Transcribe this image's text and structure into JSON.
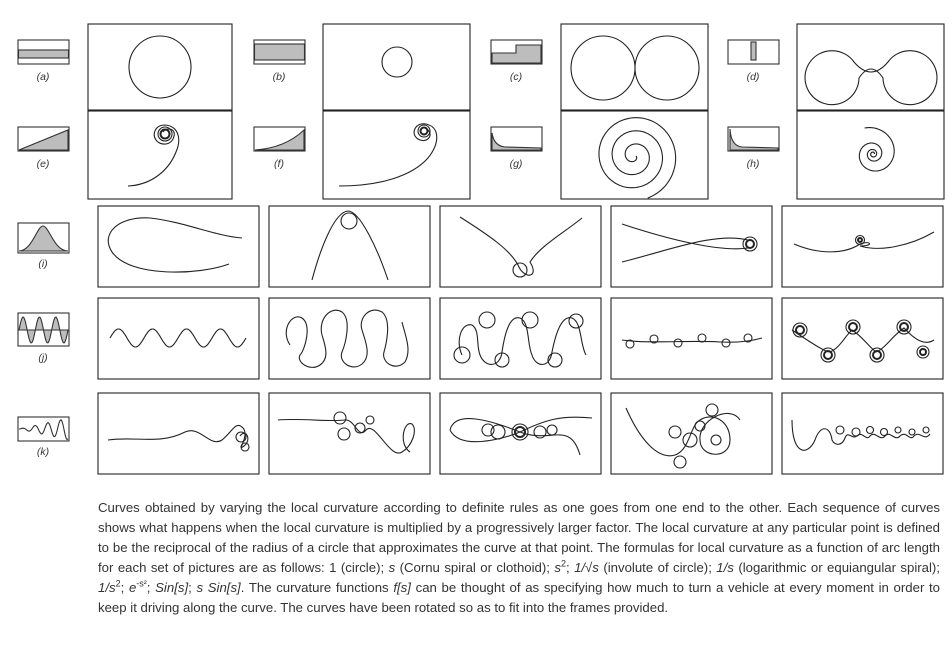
{
  "row_labels": [
    "(a)",
    "(b)",
    "(c)",
    "(d)",
    "(e)",
    "(f)",
    "(g)",
    "(h)",
    "(i)",
    "(j)",
    "(k)"
  ],
  "caption": {
    "p1": "Curves obtained by varying the local curvature according to definite rules as one goes from one end to the other. Each sequence of curves shows what happens when the local curvature is multiplied by a progressively larger factor. The local curvature at any particular point is defined to be the reciprocal of the radius of a circle that approximates the curve at that point. The formulas for local curvature as a function of arc length for each set of pictures are as follows: 1 (circle); ",
    "f_s": "s",
    "t_cornu": " (Cornu spiral or clothoid); ",
    "f_s2_base": "s",
    "f_s2_exp": "2",
    "sep1": "; ",
    "f_inv_sqrt": "1/√s",
    "t_involute": " (involute of circle); ",
    "f_inv_s": "1/s",
    "t_log": " (logarithmic or equiangular spiral); ",
    "f_inv_s2": "1/s",
    "f_inv_s2_exp": "2",
    "sep2": "; ",
    "f_gauss_base": "e",
    "f_gauss_exp": "-s²",
    "sep3": "; ",
    "f_sin": "Sin[s]",
    "sep4": "; ",
    "f_ssin": "s Sin[s]",
    "t_mid": ". The curvature functions ",
    "f_fs": "f[s]",
    "t_end": " can be thought of as specifying how much to turn a vehicle at every moment in order to keep it driving along the curve. The curves have been rotated so as to fit into the frames provided."
  }
}
